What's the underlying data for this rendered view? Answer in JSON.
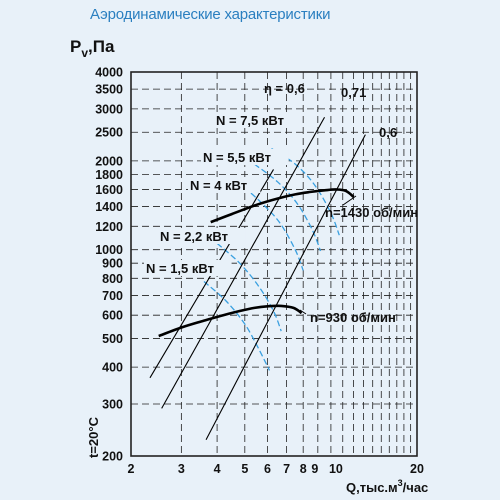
{
  "title": "Аэродинамические характеристики",
  "chart_data": {
    "type": "line",
    "title": "Аэродинамические характеристики",
    "ylabel": "P",
    "ylabel_sub": "v",
    "yunit": ",Па",
    "xlabel": "Q,тыс.м",
    "xlabel_sup": "3",
    "xlabel_tail": "/час",
    "temperature_label": "t=20°C",
    "x_scale": "log",
    "y_scale": "log",
    "xlim": [
      2,
      20
    ],
    "ylim": [
      200,
      4000
    ],
    "x_ticks": [
      {
        "value": 2,
        "label": "2"
      },
      {
        "value": 3,
        "label": "3"
      },
      {
        "value": 4,
        "label": "4"
      },
      {
        "value": 5,
        "label": "5"
      },
      {
        "value": 6,
        "label": "6"
      },
      {
        "value": 7,
        "label": "7"
      },
      {
        "value": 8,
        "label": "8"
      },
      {
        "value": 9,
        "label": "9"
      },
      {
        "value": 10,
        "label": "10"
      },
      {
        "value": 20,
        "label": "20"
      }
    ],
    "y_ticks": [
      {
        "value": 200,
        "label": "200"
      },
      {
        "value": 300,
        "label": "300"
      },
      {
        "value": 400,
        "label": "400"
      },
      {
        "value": 500,
        "label": "500"
      },
      {
        "value": 600,
        "label": "600"
      },
      {
        "value": 700,
        "label": "700"
      },
      {
        "value": 800,
        "label": "800"
      },
      {
        "value": 900,
        "label": "900"
      },
      {
        "value": 1000,
        "label": "1000"
      },
      {
        "value": 1200,
        "label": "1200"
      },
      {
        "value": 1400,
        "label": "1400"
      },
      {
        "value": 1600,
        "label": "1600"
      },
      {
        "value": 1800,
        "label": "1800"
      },
      {
        "value": 2000,
        "label": "2000"
      },
      {
        "value": 2500,
        "label": "2500"
      },
      {
        "value": 3000,
        "label": "3000"
      },
      {
        "value": 3500,
        "label": "3500"
      },
      {
        "value": 4000,
        "label": "4000"
      }
    ],
    "grid": true,
    "fan_curves": [
      {
        "name": "n=1430 об/мин",
        "x": [
          3.8,
          4.5,
          5.5,
          6.5,
          7.5,
          8.5,
          9.5,
          10.5,
          11.3,
          12.0
        ],
        "y": [
          1240,
          1320,
          1420,
          1490,
          1540,
          1570,
          1590,
          1600,
          1580,
          1510
        ]
      },
      {
        "name": "n=930 об/мин",
        "x": [
          2.5,
          3.0,
          3.6,
          4.2,
          4.8,
          5.4,
          6.0,
          6.7,
          7.4,
          7.9
        ],
        "y": [
          510,
          545,
          575,
          600,
          620,
          635,
          643,
          645,
          635,
          610
        ]
      }
    ],
    "efficiency_lines": [
      {
        "name": "η = 0,6",
        "x": [
          2.33,
          6.3
        ],
        "y": [
          368,
          1870
        ]
      },
      {
        "name": "0,71",
        "x": [
          2.56,
          9.5
        ],
        "y": [
          290,
          2810
        ]
      },
      {
        "name": "0,6",
        "x": [
          3.66,
          13.2
        ],
        "y": [
          227,
          2455
        ]
      }
    ],
    "power_curves": [
      {
        "name": "N = 7,5 кВт",
        "x": [
          6.2,
          7.5,
          8.8,
          10.0,
          10.7
        ],
        "y": [
          2200,
          1950,
          1650,
          1330,
          1120
        ]
      },
      {
        "name": "N = 5,5 кВт",
        "x": [
          5.4,
          6.5,
          7.6,
          8.6,
          9.2
        ],
        "y": [
          1950,
          1700,
          1440,
          1170,
          990
        ]
      },
      {
        "name": "N = 4 кВт",
        "x": [
          4.7,
          5.6,
          6.6,
          7.5,
          8.0
        ],
        "y": [
          1700,
          1470,
          1240,
          1000,
          850
        ]
      },
      {
        "name": "N = 2,2 кВт",
        "x": [
          4.0,
          4.8,
          5.6,
          6.3,
          6.7
        ],
        "y": [
          1050,
          900,
          750,
          620,
          530
        ]
      },
      {
        "name": "N = 1,5 кВт",
        "x": [
          3.6,
          4.3,
          5.0,
          5.6,
          6.1
        ],
        "y": [
          780,
          670,
          560,
          460,
          390
        ]
      }
    ],
    "colors": {
      "background": "#e8f1f9",
      "grid": "#222222",
      "fan_curve": "#000000",
      "efficiency": "#000000",
      "power": "#3aa0e0",
      "title": "#2a7fc0"
    }
  }
}
